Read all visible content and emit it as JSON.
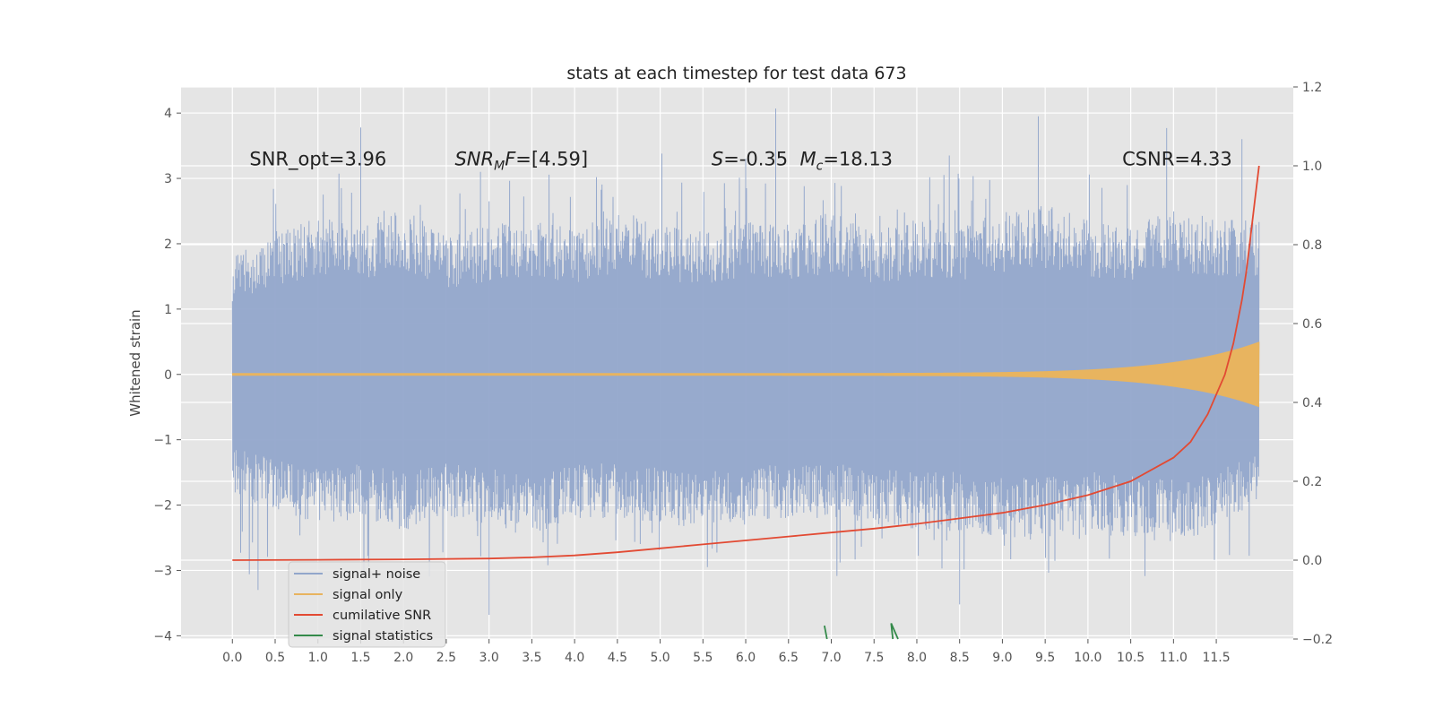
{
  "chart_data": {
    "type": "line",
    "title": "stats at each timestep for test data 673",
    "ylabel": "Whitened strain",
    "xlabel": "",
    "xlim": [
      -0.6,
      12.4
    ],
    "ylim": [
      -4.05,
      4.4
    ],
    "y2lim": [
      -0.2,
      1.2
    ],
    "xticks": [
      0.0,
      0.5,
      1.0,
      1.5,
      2.0,
      2.5,
      3.0,
      3.5,
      4.0,
      4.5,
      5.0,
      5.5,
      6.0,
      6.5,
      7.0,
      7.5,
      8.0,
      8.5,
      9.0,
      9.5,
      10.0,
      10.5,
      11.0,
      11.5
    ],
    "xtick_labels": [
      "0.0",
      "0.5",
      "1.0",
      "1.5",
      "2.0",
      "2.5",
      "3.0",
      "3.5",
      "4.0",
      "4.5",
      "5.0",
      "5.5",
      "6.0",
      "6.5",
      "7.0",
      "7.5",
      "8.0",
      "8.5",
      "9.0",
      "9.5",
      "10.0",
      "10.5",
      "11.0",
      "11.5"
    ],
    "yticks": [
      -4,
      -3,
      -2,
      -1,
      0,
      1,
      2,
      3,
      4
    ],
    "ytick_labels": [
      "−4",
      "−3",
      "−2",
      "−1",
      "0",
      "1",
      "2",
      "3",
      "4"
    ],
    "y2ticks": [
      -0.2,
      0.0,
      0.2,
      0.4,
      0.6,
      0.8,
      1.0,
      1.2
    ],
    "y2tick_labels": [
      "−0.2",
      "0.0",
      "0.2",
      "0.4",
      "0.6",
      "0.8",
      "1.0",
      "1.2"
    ],
    "grid": true,
    "legend_position": "bottom-left",
    "annotations": [
      {
        "text": "SNR_opt=3.96",
        "x": 0.2,
        "y": 3.2
      },
      {
        "text": "SNR_MF=[4.59]",
        "x": 2.6,
        "y": 3.2
      },
      {
        "text": "S=-0.35  M_c=18.13",
        "x": 5.6,
        "y": 3.2
      },
      {
        "text": "CSNR=4.33",
        "x": 10.4,
        "y": 3.2
      }
    ],
    "series": [
      {
        "name": "signal+ noise",
        "color": "#92a6cb",
        "axis": "left",
        "kind": "noise",
        "x_range": [
          0.0,
          12.0
        ],
        "envelope_pos": [
          1.8,
          2.2,
          2.4,
          2.3,
          2.6,
          2.1,
          2.3,
          2.4,
          2.2,
          2.5,
          2.3,
          2.2,
          2.4,
          2.3,
          2.5,
          2.2,
          2.4,
          2.3,
          2.5,
          2.6,
          2.4,
          2.3,
          2.5,
          2.4,
          2.4
        ],
        "envelope_neg": [
          -1.8,
          -2.1,
          -2.3,
          -2.2,
          -2.4,
          -2.2,
          -2.3,
          -2.5,
          -2.2,
          -2.2,
          -2.3,
          -2.4,
          -2.3,
          -2.2,
          -2.2,
          -2.3,
          -2.4,
          -2.4,
          -2.5,
          -2.5,
          -2.4,
          -2.5,
          -2.6,
          -2.4,
          -1.9
        ],
        "spikes": [
          [
            1.5,
            3.78
          ],
          [
            3.0,
            -3.68
          ],
          [
            6.35,
            4.07
          ],
          [
            5.02,
            3.38
          ],
          [
            8.38,
            3.35
          ],
          [
            9.42,
            3.95
          ],
          [
            10.92,
            3.77
          ],
          [
            11.8,
            3.6
          ],
          [
            0.3,
            -3.3
          ],
          [
            8.5,
            -3.52
          ],
          [
            6.0,
            3.3
          ],
          [
            2.9,
            3.1
          ]
        ]
      },
      {
        "name": "signal only",
        "color": "#e8b45f",
        "axis": "left",
        "kind": "chirp",
        "x_range": [
          0.0,
          12.0
        ],
        "amplitude_start": 0.02,
        "amplitude_end": 0.5
      },
      {
        "name": "cumilative SNR",
        "color": "#e24a33",
        "axis": "right",
        "x": [
          0.0,
          1.0,
          2.0,
          3.0,
          3.5,
          4.0,
          4.5,
          5.0,
          5.5,
          6.0,
          6.5,
          7.0,
          7.5,
          8.0,
          8.5,
          9.0,
          9.5,
          10.0,
          10.5,
          11.0,
          11.2,
          11.4,
          11.6,
          11.7,
          11.8,
          11.85,
          11.9,
          11.95,
          12.0
        ],
        "values": [
          0.0,
          0.001,
          0.002,
          0.004,
          0.007,
          0.012,
          0.02,
          0.03,
          0.04,
          0.05,
          0.06,
          0.07,
          0.08,
          0.092,
          0.106,
          0.12,
          0.14,
          0.165,
          0.2,
          0.26,
          0.3,
          0.37,
          0.47,
          0.55,
          0.66,
          0.73,
          0.82,
          0.91,
          1.0
        ]
      },
      {
        "name": "signal statistics",
        "color": "#348a4a",
        "axis": "right",
        "x": [
          6.92,
          6.95,
          7.7,
          7.72,
          7.78
        ],
        "values": [
          -0.166,
          -0.2,
          -0.16,
          -0.2,
          -0.2
        ]
      }
    ]
  }
}
